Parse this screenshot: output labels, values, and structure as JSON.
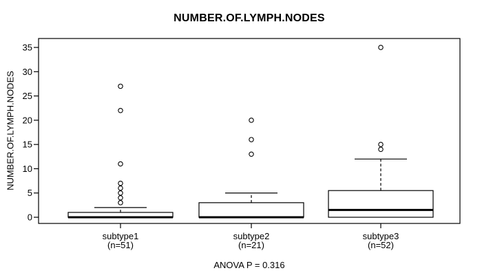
{
  "title": "NUMBER.OF.LYMPH.NODES",
  "chart_data": {
    "type": "boxplot",
    "title": "NUMBER.OF.LYMPH.NODES",
    "xlabel": "",
    "ylabel": "NUMBER.OF.LYMPH.NODES",
    "annotation": "ANOVA P = 0.316",
    "yticks": [
      0,
      5,
      10,
      15,
      20,
      25,
      30,
      35
    ],
    "ylim": [
      -1.3,
      36.8
    ],
    "grid": false,
    "legend": false,
    "groups": [
      {
        "label": "subtype1",
        "sublabel": "(n=51)",
        "q1": 0,
        "median": 0,
        "q3": 1,
        "whisker_low": 0,
        "whisker_high": 2,
        "outliers": [
          3,
          4,
          5,
          6,
          7,
          11,
          22,
          27
        ]
      },
      {
        "label": "subtype2",
        "sublabel": "(n=21)",
        "q1": 0,
        "median": 0,
        "q3": 3,
        "whisker_low": 0,
        "whisker_high": 5,
        "outliers": [
          13,
          16,
          20
        ]
      },
      {
        "label": "subtype3",
        "sublabel": "(n=52)",
        "q1": 0,
        "median": 1.5,
        "q3": 5.5,
        "whisker_low": 0,
        "whisker_high": 12,
        "outliers": [
          14,
          15,
          35
        ]
      }
    ],
    "colors": {
      "stroke": "#000000",
      "box_fill": "#ffffff",
      "background": "#ffffff"
    }
  }
}
